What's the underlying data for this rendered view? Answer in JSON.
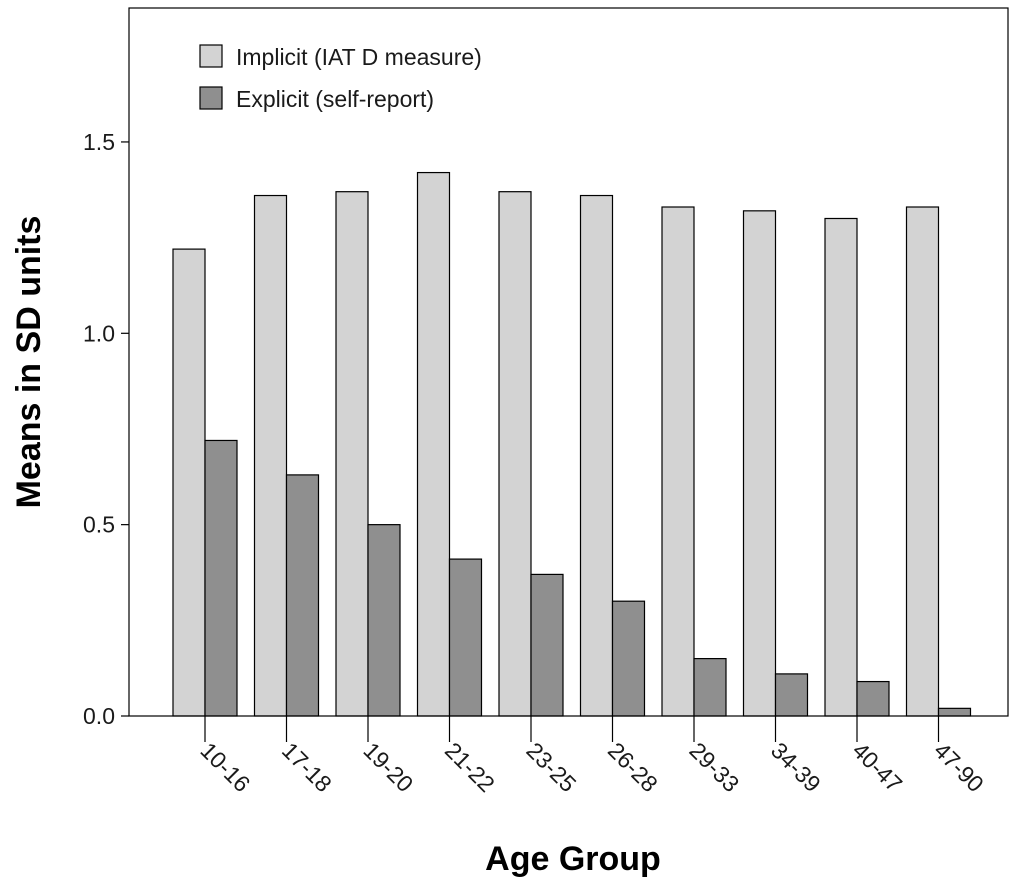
{
  "chart_data": {
    "type": "bar",
    "title": "",
    "xlabel": "Age Group",
    "ylabel": "Means in SD units",
    "ylim": [
      0,
      1.85
    ],
    "yticks": [
      0.0,
      0.5,
      1.0,
      1.5
    ],
    "ytick_labels": [
      "0.0",
      "0.5",
      "1.0",
      "1.5"
    ],
    "grid": false,
    "legend_position": "top-left",
    "categories": [
      "10-16",
      "17-18",
      "19-20",
      "21-22",
      "23-25",
      "26-28",
      "29-33",
      "34-39",
      "40-47",
      "47-90"
    ],
    "series": [
      {
        "name": "Implicit (IAT D measure)",
        "color": "#d3d3d3",
        "values": [
          1.22,
          1.36,
          1.37,
          1.42,
          1.37,
          1.36,
          1.33,
          1.32,
          1.3,
          1.33
        ]
      },
      {
        "name": "Explicit (self-report)",
        "color": "#8f8f8f",
        "values": [
          0.72,
          0.63,
          0.5,
          0.41,
          0.37,
          0.3,
          0.15,
          0.11,
          0.09,
          0.02
        ]
      }
    ]
  }
}
